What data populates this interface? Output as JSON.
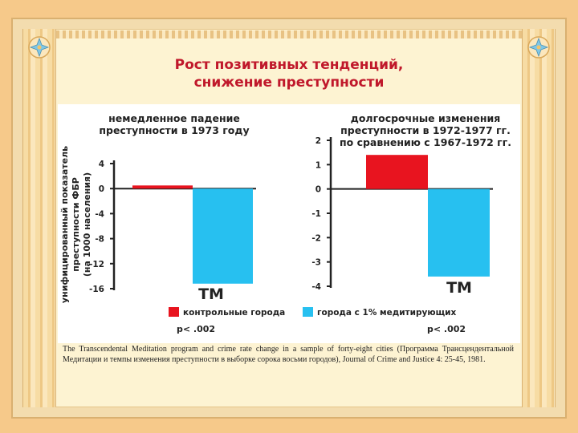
{
  "slide": {
    "title_line1": "Рост позитивных тенденций,",
    "title_line2": "снижение преступности",
    "caption": "The Transcendental Meditation program and crime rate change in a sample of forty-eight cities (Программа Трансцендентальной Медитации и темпы изменения преступности в выборке сорока восьми городов), Journal of Crime and Justice 4: 25-45, 1981."
  },
  "colors": {
    "control": "#e8141f",
    "meditating": "#27c0f0",
    "title": "#c0182b"
  },
  "chart_data": [
    {
      "type": "bar",
      "title_lines": [
        "немедленное падение",
        "преступности в 1973 году"
      ],
      "ylabel_lines": [
        "унифицированный показатель",
        "преступности ФБР",
        "(на 1000 населения)"
      ],
      "yticks": [
        4,
        0,
        -4,
        -8,
        -12,
        -16
      ],
      "ylim": [
        -16,
        4
      ],
      "series": [
        {
          "name": "контрольные города",
          "values": [
            0.5
          ]
        },
        {
          "name": "города с 1% медитирующих",
          "values": [
            -15.2
          ]
        }
      ],
      "bar_label": "TM",
      "annotation": "p< .002"
    },
    {
      "type": "bar",
      "title_lines": [
        "долгосрочные изменения",
        "преступности в 1972-1977 гг.",
        "по сравнению с 1967-1972 гг."
      ],
      "yticks": [
        2,
        1,
        0,
        -1,
        -2,
        -3,
        -4
      ],
      "ylim": [
        -4,
        2
      ],
      "series": [
        {
          "name": "контрольные города",
          "values": [
            1.4
          ]
        },
        {
          "name": "города с 1% медитирующих",
          "values": [
            -3.6
          ]
        }
      ],
      "bar_label": "TM",
      "annotation": "p< .002"
    }
  ],
  "legend": {
    "control": "контрольные города",
    "meditating": "города с 1% медитирующих"
  }
}
